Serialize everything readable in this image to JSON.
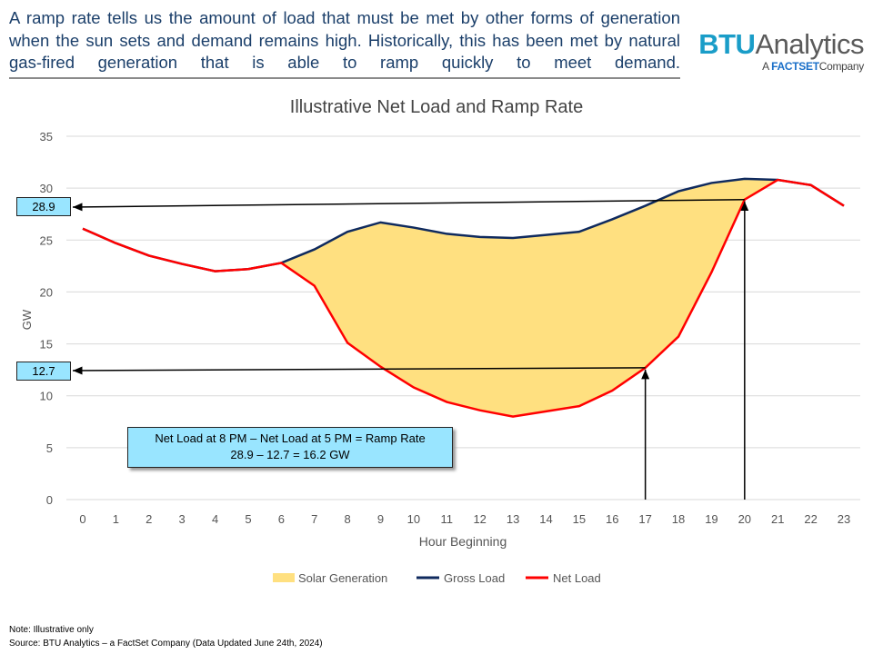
{
  "header": {
    "intro": "A ramp rate tells us the amount of load that must be met by other forms of generation when the sun sets and demand remains high. Historically, this has been met by natural gas-fired generation that is able to ramp quickly to meet demand.",
    "logo_main_1": "BTU",
    "logo_main_2": "Analytics",
    "logo_sub_1": "A",
    "logo_sub_2": "FACTSET",
    "logo_sub_3": "Company"
  },
  "chart_data": {
    "type": "line",
    "title": "Illustrative Net Load and Ramp Rate",
    "xlabel": "Hour Beginning",
    "ylabel": "GW",
    "ylim": [
      0,
      35
    ],
    "yticks": [
      0,
      5,
      10,
      15,
      20,
      25,
      30,
      35
    ],
    "x": [
      0,
      1,
      2,
      3,
      4,
      5,
      6,
      7,
      8,
      9,
      10,
      11,
      12,
      13,
      14,
      15,
      16,
      17,
      18,
      19,
      20,
      21,
      22,
      23
    ],
    "series": [
      {
        "name": "Gross Load",
        "color": "#0f2a5e",
        "values": [
          26.1,
          24.7,
          23.5,
          22.7,
          22.0,
          22.2,
          22.8,
          24.1,
          25.8,
          26.7,
          26.2,
          25.6,
          25.3,
          25.2,
          25.5,
          25.8,
          27.0,
          28.3,
          29.7,
          30.5,
          30.9,
          30.8,
          30.3,
          28.3
        ]
      },
      {
        "name": "Net Load",
        "color": "#ff0000",
        "values": [
          26.1,
          24.7,
          23.5,
          22.7,
          22.0,
          22.2,
          22.8,
          20.6,
          15.1,
          12.8,
          10.8,
          9.4,
          8.6,
          8.0,
          8.5,
          9.0,
          10.5,
          12.7,
          15.7,
          21.9,
          28.9,
          30.8,
          30.3,
          28.3
        ]
      }
    ],
    "area": {
      "name": "Solar Generation",
      "color": "#ffe080"
    },
    "grid": "horizontal",
    "legend": "bottom",
    "annotations": {
      "marker_high": "28.9",
      "marker_low": "12.7",
      "high_hour": 20,
      "low_hour": 17,
      "high_value": 28.9,
      "low_value": 12.7,
      "formula_line1": "Net Load at 8 PM – Net Load at 5 PM = Ramp Rate",
      "formula_line2": "28.9 – 12.7 = 16.2 GW"
    }
  },
  "footer": {
    "note": "Note: Illustrative only",
    "source": "Source: BTU Analytics – a FactSet Company (Data Updated June 24th, 2024)"
  }
}
